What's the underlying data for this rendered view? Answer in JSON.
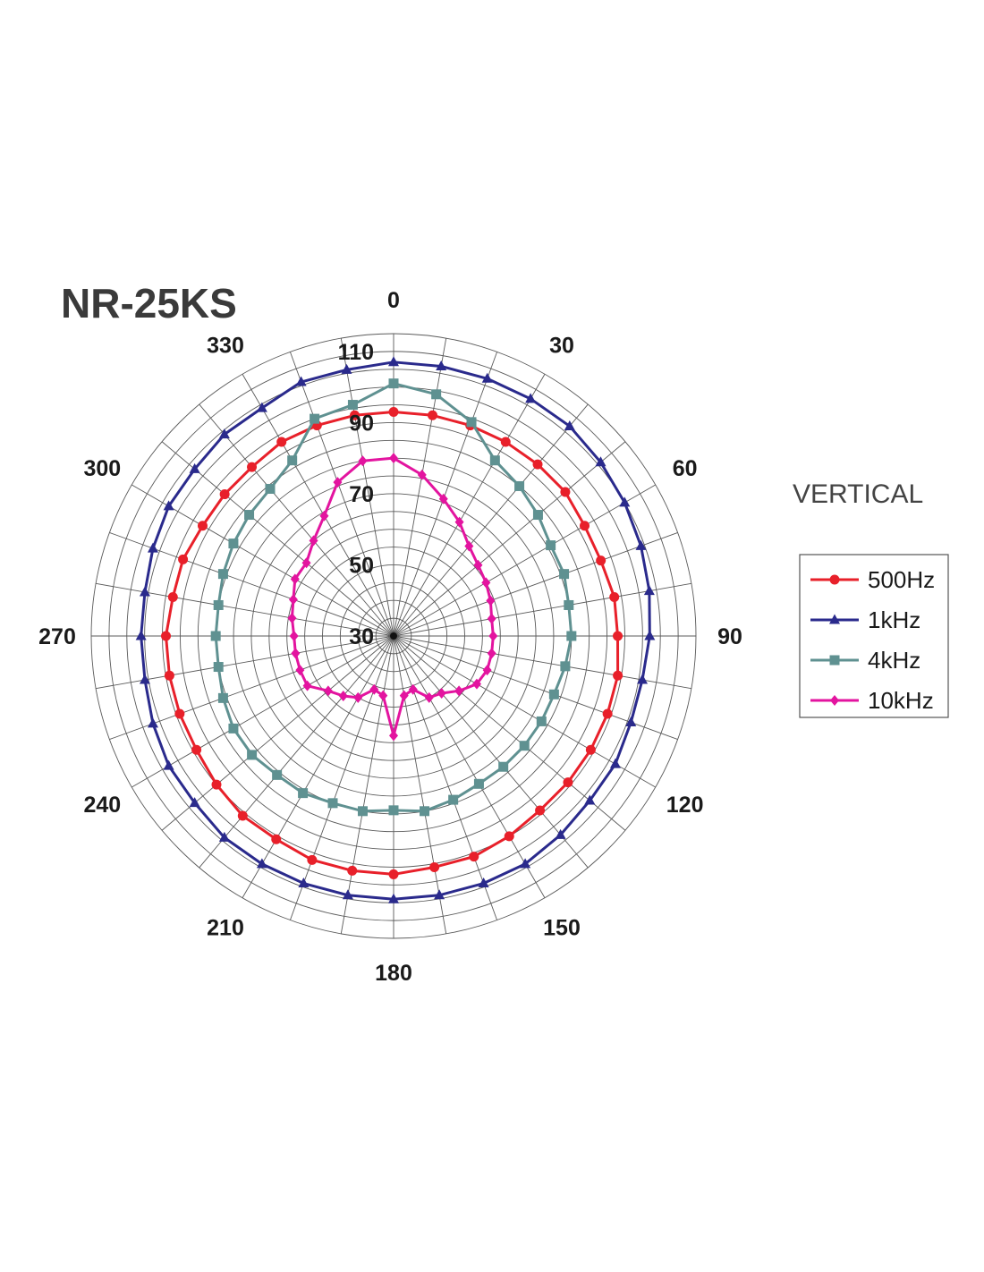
{
  "chart_data": {
    "type": "polar-line",
    "title": "NR-25KS",
    "subtitle": "VERTICAL",
    "angle_unit": "degrees",
    "angle_step": 10,
    "angle_labels": [
      "0",
      "30",
      "60",
      "90",
      "120",
      "150",
      "180",
      "210",
      "240",
      "270",
      "300",
      "330"
    ],
    "radial_range": [
      30,
      115
    ],
    "radial_ring_step": 5,
    "radial_tick_labels": [
      "30",
      "50",
      "70",
      "90",
      "110"
    ],
    "radial_tick_values": [
      30,
      50,
      70,
      90,
      110
    ],
    "grid": true,
    "legend_position": "right",
    "series": [
      {
        "name": "500Hz",
        "color": "#e8202a",
        "marker": "circle",
        "values": [
          93,
          93,
          93,
          93,
          93,
          93,
          92,
          92,
          93,
          93,
          94,
          94,
          94,
          94,
          94,
          95,
          96,
          96,
          97,
          97,
          97,
          96,
          96,
          95,
          94,
          94,
          94,
          94,
          93,
          93,
          92,
          92,
          92,
          93,
          93,
          93
        ]
      },
      {
        "name": "1kHz",
        "color": "#2a2a8c",
        "marker": "triangle",
        "values": [
          107,
          107,
          107,
          107,
          107,
          106,
          105,
          104,
          103,
          102,
          101,
          101,
          102,
          102,
          103,
          104,
          104,
          104,
          104,
          104,
          104,
          104,
          104,
          103,
          103,
          102,
          101,
          101,
          101,
          102,
          103,
          103,
          104,
          104,
          106,
          106
        ]
      },
      {
        "name": "4kHz",
        "color": "#5f9191",
        "marker": "square",
        "values": [
          101,
          99,
          94,
          87,
          85,
          83,
          81,
          81,
          80,
          80,
          79,
          78,
          78,
          78,
          78,
          78,
          79,
          80,
          79,
          80,
          80,
          81,
          81,
          82,
          82,
          81,
          80,
          80,
          80,
          81,
          82,
          83,
          84,
          87,
          95,
          96
        ]
      },
      {
        "name": "10kHz",
        "color": "#e3149f",
        "marker": "diamond",
        "values": [
          80,
          76,
          71,
          67,
          63,
          61,
          60,
          59,
          58,
          58,
          58,
          58,
          57,
          54,
          51,
          50,
          46,
          47,
          58,
          47,
          46,
          50,
          52,
          54,
          58,
          58,
          58,
          58,
          59,
          60,
          62,
          62,
          65,
          69,
          76,
          80
        ]
      }
    ]
  }
}
